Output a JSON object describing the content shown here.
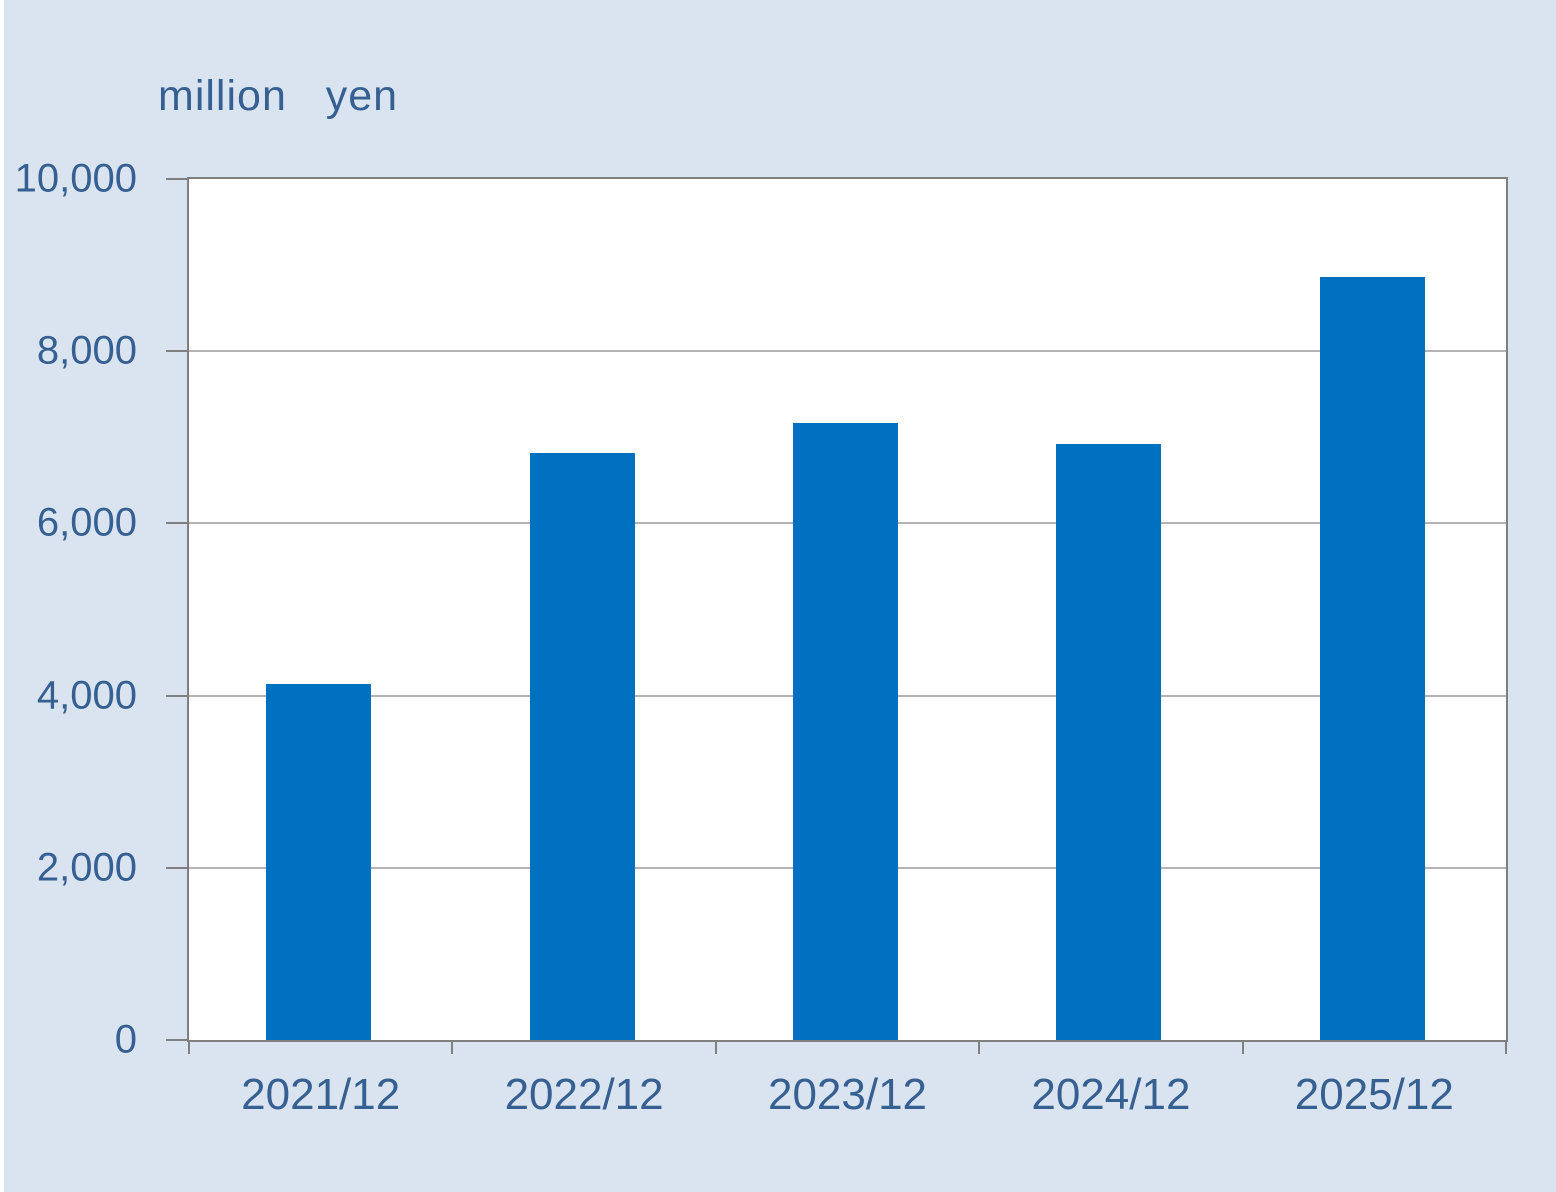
{
  "chart_data": {
    "type": "bar",
    "title": "million   yen",
    "categories": [
      "2021/12",
      "2022/12",
      "2023/12",
      "2024/12",
      "2025/12"
    ],
    "values": [
      4140,
      6820,
      7170,
      6920,
      8860
    ],
    "xlabel": "",
    "ylabel": "million yen",
    "ylim": [
      0,
      10000
    ],
    "ytick_interval": 2000,
    "ytick_labels": [
      "0",
      "2,000",
      "4,000",
      "6,000",
      "8,000",
      "10,000"
    ],
    "grid": true,
    "legend": "none",
    "colors": {
      "bar": "#0070c0",
      "page_background": "#dae4f0",
      "plot_background": "#ffffff",
      "axis": "#7f7f7f",
      "gridline": "#b3b3b3",
      "text": "#366092"
    }
  }
}
